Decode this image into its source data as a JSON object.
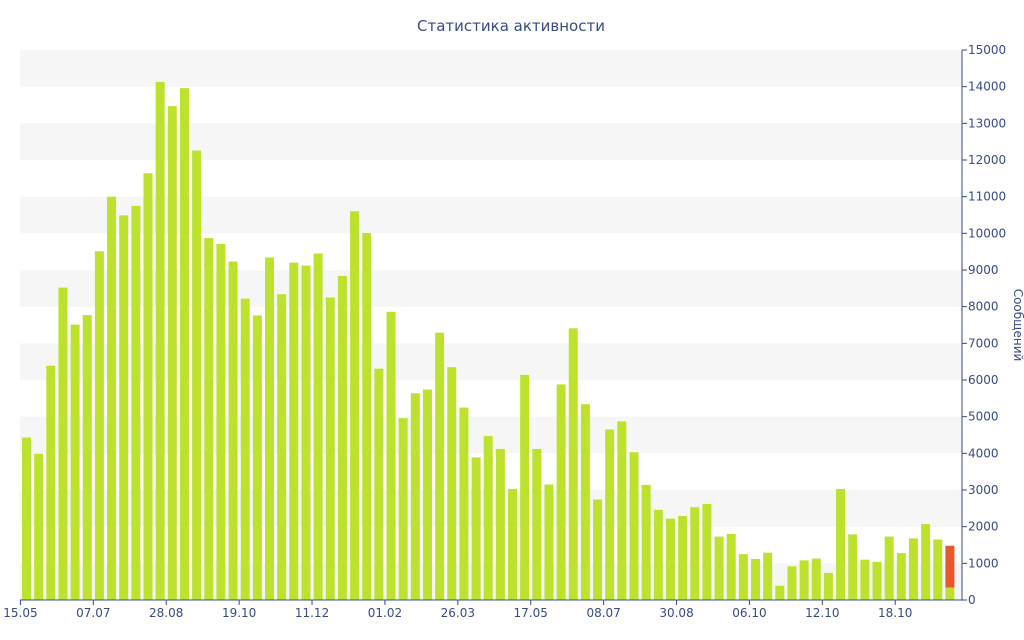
{
  "chart_data": {
    "type": "bar",
    "title": "Статистика активности",
    "xlabel": "",
    "ylabel": "Сообщений",
    "ylim": [
      0,
      15000
    ],
    "yticks": [
      0,
      1000,
      2000,
      3000,
      4000,
      5000,
      6000,
      7000,
      8000,
      9000,
      10000,
      11000,
      12000,
      13000,
      14000,
      15000
    ],
    "y_axis_side": "right",
    "grid": "alternating horizontal bands",
    "xtick_labels": [
      {
        "label": "15.05",
        "index": 0
      },
      {
        "label": "07.07",
        "index": 6
      },
      {
        "label": "28.08",
        "index": 12
      },
      {
        "label": "19.10",
        "index": 18
      },
      {
        "label": "11.12",
        "index": 24
      },
      {
        "label": "01.02",
        "index": 30
      },
      {
        "label": "26.03",
        "index": 36
      },
      {
        "label": "17.05",
        "index": 42
      },
      {
        "label": "08.07",
        "index": 48
      },
      {
        "label": "30.08",
        "index": 54
      },
      {
        "label": "06.10",
        "index": 60
      },
      {
        "label": "12.10",
        "index": 66
      },
      {
        "label": "18.10",
        "index": 72
      }
    ],
    "bar_color": "#bde22e",
    "highlight_color": "#e8582c",
    "values": [
      4430,
      3990,
      6390,
      8520,
      7510,
      7770,
      9510,
      11000,
      10490,
      10750,
      11640,
      14130,
      13470,
      13960,
      12260,
      9870,
      9710,
      9230,
      8220,
      7760,
      9340,
      8340,
      9200,
      9120,
      9450,
      8250,
      8840,
      10600,
      10010,
      6310,
      7860,
      4960,
      5640,
      5740,
      7290,
      6350,
      5250,
      3890,
      4470,
      4120,
      3030,
      6140,
      4120,
      3150,
      5880,
      7410,
      5340,
      2740,
      4650,
      4870,
      4030,
      3140,
      2460,
      2220,
      2290,
      2530,
      2620,
      1730,
      1800,
      1250,
      1120,
      1290,
      390,
      920,
      1080,
      1130,
      740,
      3030,
      1790,
      1100,
      1040,
      1730,
      1280,
      1680,
      2070,
      1650
    ],
    "last_bar": {
      "value": 1480,
      "completed_part": 340
    }
  }
}
